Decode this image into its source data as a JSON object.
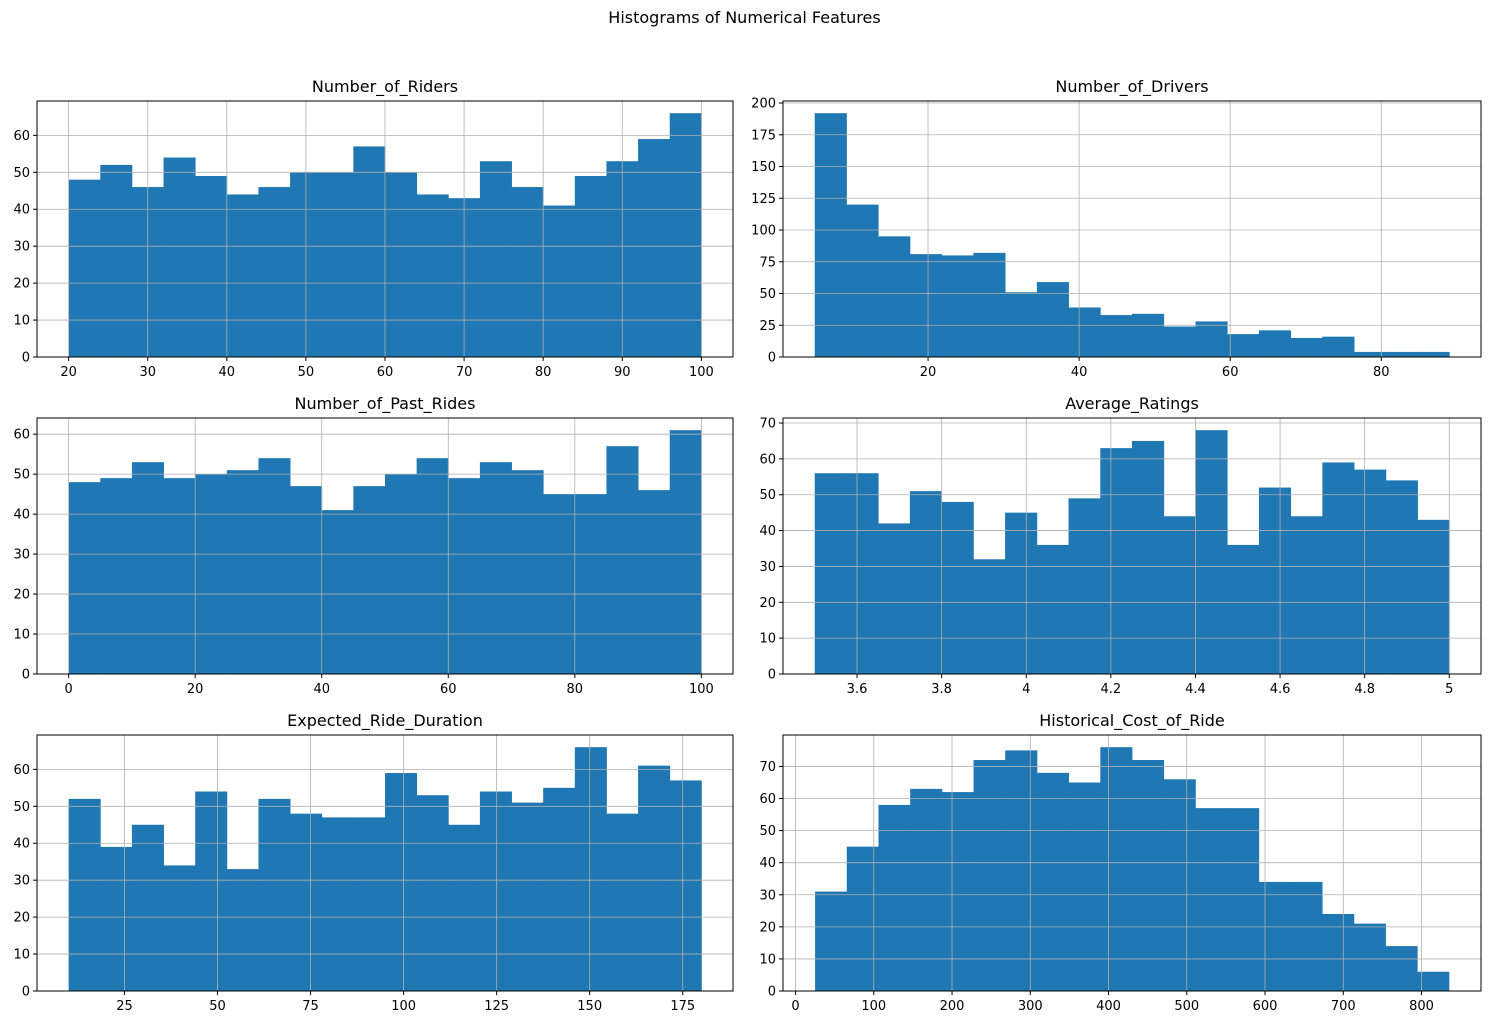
{
  "suptitle": "Histograms of Numerical Features",
  "colors": {
    "bar": "#1f77b4",
    "grid": "#b0b0b0",
    "axis": "#000000"
  },
  "chart_data": [
    {
      "type": "bar",
      "title": "Number_of_Riders",
      "grid": true,
      "xlim": [
        16,
        104
      ],
      "ylim": [
        0,
        69.3
      ],
      "xticks": [
        20,
        30,
        40,
        50,
        60,
        70,
        80,
        90,
        100
      ],
      "yticks": [
        0,
        10,
        20,
        30,
        40,
        50,
        60
      ],
      "bin_edges": [
        20,
        24,
        28,
        32,
        36,
        40,
        44,
        48,
        52,
        56,
        60,
        64,
        68,
        72,
        76,
        80,
        84,
        88,
        92,
        96,
        100
      ],
      "values": [
        48,
        52,
        46,
        54,
        49,
        44,
        46,
        50,
        50,
        57,
        50,
        44,
        43,
        53,
        46,
        41,
        49,
        53,
        59,
        66
      ]
    },
    {
      "type": "bar",
      "title": "Number_of_Drivers",
      "grid": true,
      "xlim": [
        0.8,
        93.2
      ],
      "ylim": [
        0,
        201.6
      ],
      "xticks": [
        20,
        40,
        60,
        80
      ],
      "yticks": [
        0,
        25,
        50,
        75,
        100,
        125,
        150,
        175,
        200
      ],
      "bin_edges": [
        5,
        9.2,
        13.4,
        17.6,
        21.8,
        26,
        30.2,
        34.4,
        38.6,
        42.8,
        47,
        51.2,
        55.4,
        59.6,
        63.8,
        68,
        72.2,
        76.4,
        80.6,
        84.8,
        89
      ],
      "values": [
        192,
        120,
        95,
        81,
        80,
        82,
        51,
        59,
        39,
        33,
        34,
        24,
        28,
        18,
        21,
        15,
        16,
        4,
        4,
        4
      ]
    },
    {
      "type": "bar",
      "title": "Number_of_Past_Rides",
      "grid": true,
      "xlim": [
        -5,
        105
      ],
      "ylim": [
        0,
        64.05
      ],
      "xticks": [
        0,
        20,
        40,
        60,
        80,
        100
      ],
      "yticks": [
        0,
        10,
        20,
        30,
        40,
        50,
        60
      ],
      "bin_edges": [
        0,
        5,
        10,
        15,
        20,
        25,
        30,
        35,
        40,
        45,
        50,
        55,
        60,
        65,
        70,
        75,
        80,
        85,
        90,
        95,
        100
      ],
      "values": [
        48,
        49,
        53,
        49,
        50,
        51,
        54,
        47,
        41,
        47,
        50,
        54,
        49,
        53,
        51,
        45,
        45,
        57,
        46,
        61
      ]
    },
    {
      "type": "bar",
      "title": "Average_Ratings",
      "grid": true,
      "xlim": [
        3.425,
        5.075
      ],
      "ylim": [
        0,
        71.4
      ],
      "xticks": [
        3.6,
        3.8,
        4.0,
        4.2,
        4.4,
        4.6,
        4.8,
        5.0
      ],
      "yticks": [
        0,
        10,
        20,
        30,
        40,
        50,
        60,
        70
      ],
      "bin_edges": [
        3.5,
        3.575,
        3.65,
        3.725,
        3.8,
        3.875,
        3.95,
        4.025,
        4.1,
        4.175,
        4.25,
        4.325,
        4.4,
        4.475,
        4.55,
        4.625,
        4.7,
        4.775,
        4.85,
        4.925,
        5.0
      ],
      "values": [
        56,
        56,
        42,
        51,
        48,
        32,
        45,
        36,
        49,
        63,
        65,
        44,
        68,
        36,
        52,
        44,
        59,
        57,
        54,
        43
      ]
    },
    {
      "type": "bar",
      "title": "Expected_Ride_Duration",
      "grid": true,
      "xlim": [
        1.5,
        188.5
      ],
      "ylim": [
        0,
        69.3
      ],
      "xticks": [
        25,
        50,
        75,
        100,
        125,
        150,
        175
      ],
      "yticks": [
        0,
        10,
        20,
        30,
        40,
        50,
        60
      ],
      "bin_edges": [
        10,
        18.5,
        27,
        35.5,
        44,
        52.5,
        61,
        69.5,
        78,
        86.5,
        95,
        103.5,
        112,
        120.5,
        129,
        137.5,
        146,
        154.5,
        163,
        171.5,
        180
      ],
      "values": [
        52,
        39,
        45,
        34,
        54,
        33,
        52,
        48,
        47,
        47,
        59,
        53,
        45,
        54,
        51,
        55,
        66,
        48,
        61,
        57
      ]
    },
    {
      "type": "bar",
      "title": "Historical_Cost_of_Ride",
      "grid": true,
      "xlim": [
        -16,
        876
      ],
      "ylim": [
        0,
        79.8
      ],
      "xticks": [
        0,
        100,
        200,
        300,
        400,
        500,
        600,
        700,
        800
      ],
      "yticks": [
        0,
        10,
        20,
        30,
        40,
        50,
        60,
        70
      ],
      "bin_edges": [
        25,
        65.5,
        106,
        146.5,
        187,
        227.5,
        268,
        308.5,
        349,
        389.5,
        430,
        470.5,
        511,
        551.5,
        592,
        632.5,
        673,
        713.5,
        754,
        794.5,
        835
      ],
      "values": [
        31,
        45,
        58,
        63,
        62,
        72,
        75,
        68,
        65,
        76,
        72,
        66,
        57,
        57,
        34,
        34,
        24,
        21,
        14,
        6
      ]
    }
  ]
}
